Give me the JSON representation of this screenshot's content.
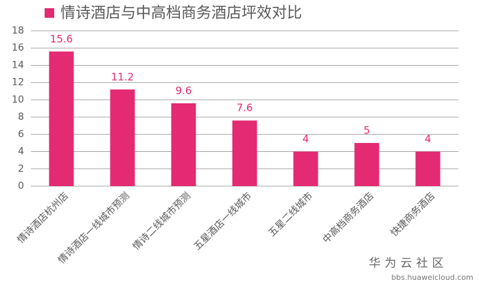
{
  "chart_data": {
    "type": "bar",
    "categories": [
      "情诗酒店杭州店",
      "情诗酒店一线城市预测",
      "情诗二线城市预测",
      "五星酒店一线城市",
      "五星二线城市",
      "中高档商务酒店",
      "快捷商务酒店"
    ],
    "series": [
      {
        "name": "情诗酒店与中高档商务酒店坪效对比",
        "color": "#e32a72",
        "values": [
          15.6,
          11.2,
          9.6,
          7.6,
          4,
          5,
          4
        ]
      }
    ],
    "ylim": [
      0,
      18
    ],
    "yticks": [
      0,
      2,
      4,
      6,
      8,
      10,
      12,
      14,
      16,
      18
    ],
    "grid": true,
    "legend": "top-left",
    "watermark_title": "华为云社区",
    "watermark_url": "bbs.huaweicloud.com"
  }
}
